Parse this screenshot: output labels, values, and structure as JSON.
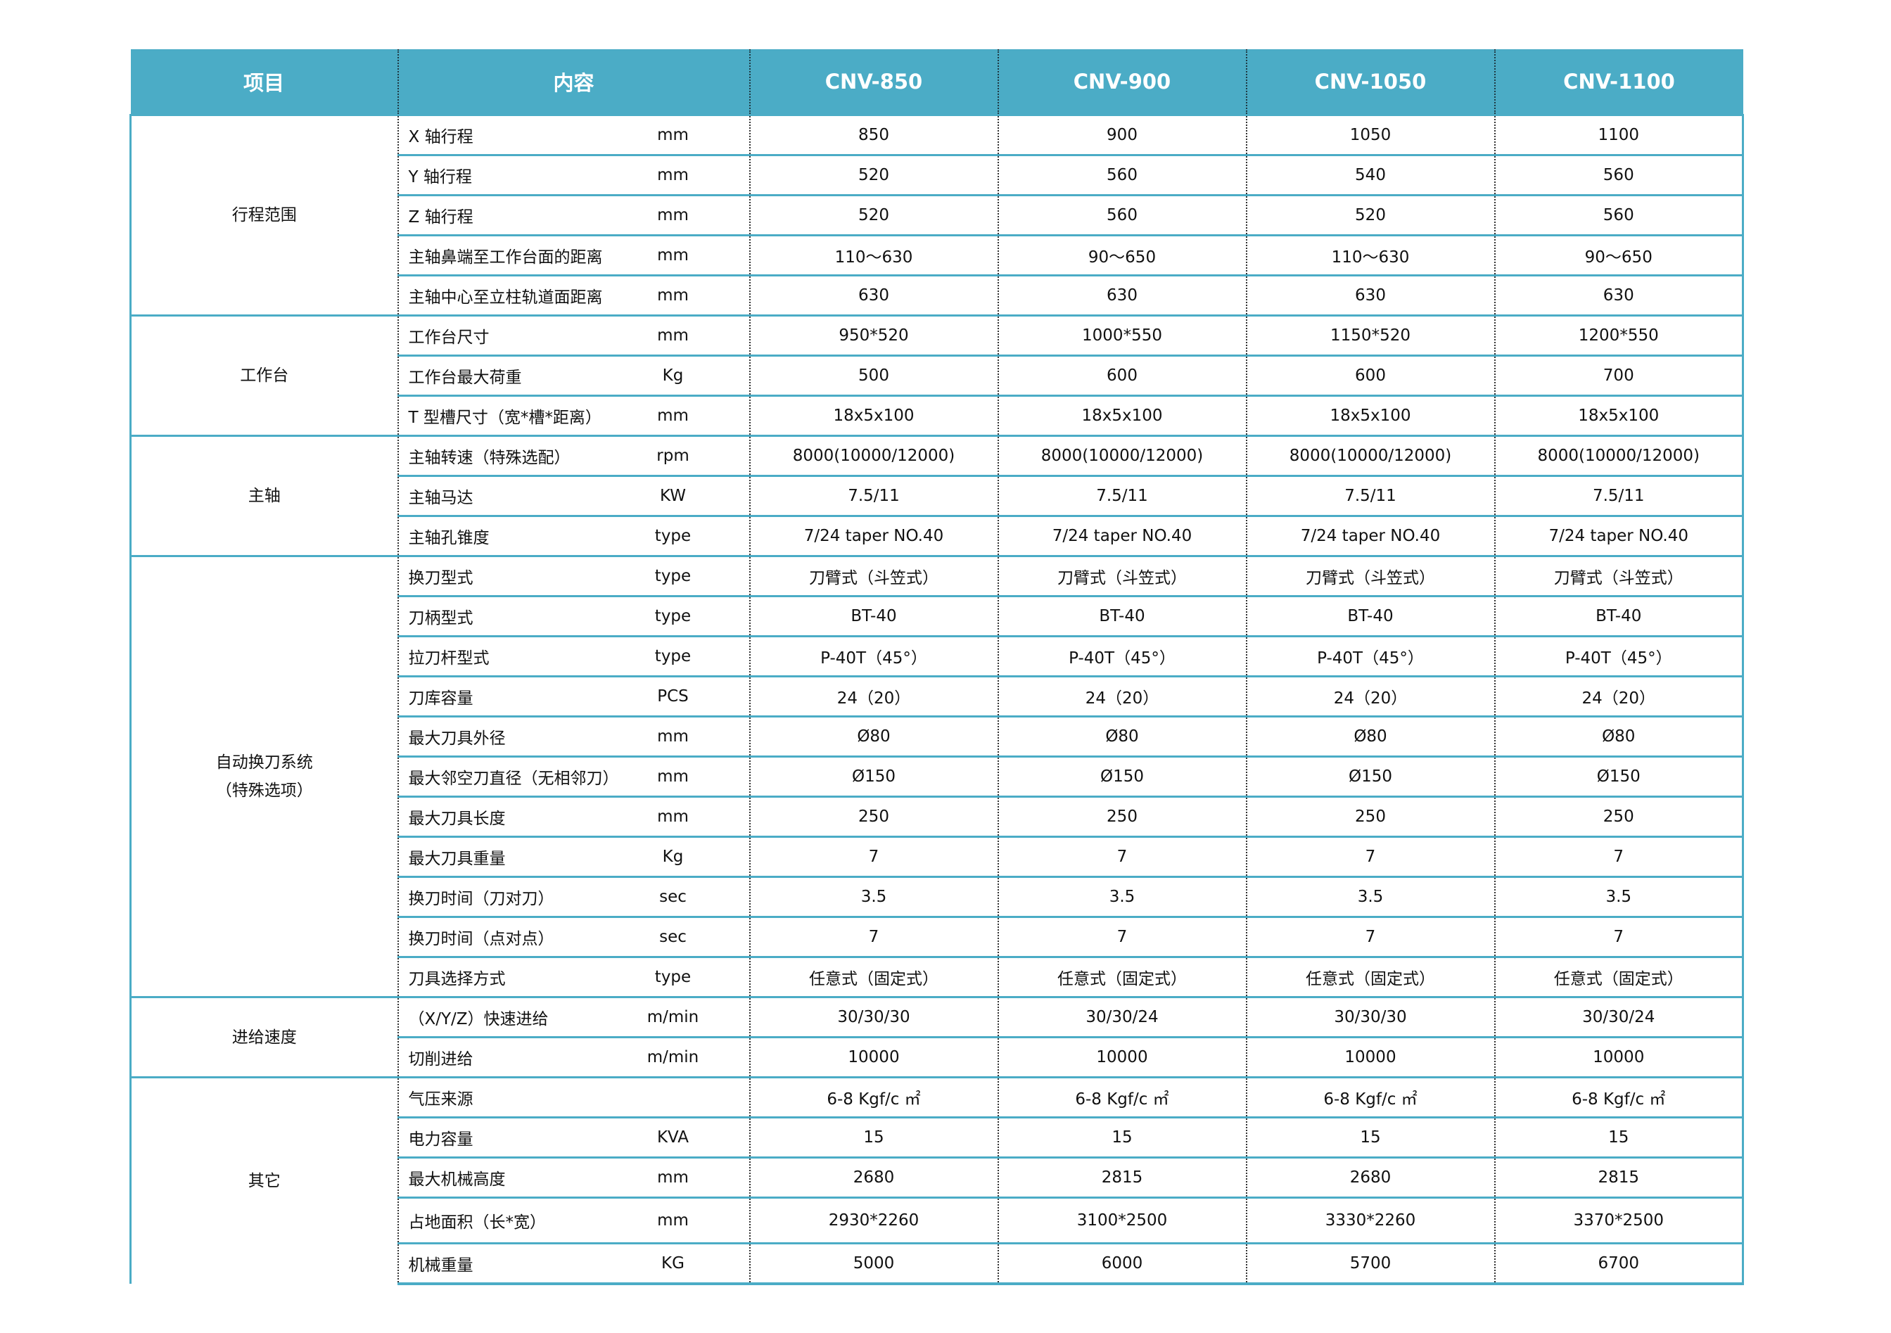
{
  "header": {
    "item": "项目",
    "content": "内容",
    "models": [
      "CNV-850",
      "CNV-900",
      "CNV-1050",
      "CNV-1100"
    ]
  },
  "colors": {
    "header_bg": "#4BACC6",
    "rule": "#4BACC6"
  },
  "groups": [
    {
      "name": "行程范围",
      "rows": [
        {
          "label": "X 轴行程",
          "unit": "mm",
          "values": [
            "850",
            "900",
            "1050",
            "1100"
          ]
        },
        {
          "label": "Y 轴行程",
          "unit": "mm",
          "values": [
            "520",
            "560",
            "540",
            "560"
          ]
        },
        {
          "label": "Z 轴行程",
          "unit": "mm",
          "values": [
            "520",
            "560",
            "520",
            "560"
          ]
        },
        {
          "label": "主轴鼻端至工作台面的距离",
          "unit": "mm",
          "values": [
            "110～630",
            "90～650",
            "110～630",
            "90～650"
          ]
        },
        {
          "label": "主轴中心至立柱轨道面距离",
          "unit": "mm",
          "values": [
            "630",
            "630",
            "630",
            "630"
          ]
        }
      ]
    },
    {
      "name": "工作台",
      "rows": [
        {
          "label": "工作台尺寸",
          "unit": "mm",
          "values": [
            "950*520",
            "1000*550",
            "1150*520",
            "1200*550"
          ]
        },
        {
          "label": "工作台最大荷重",
          "unit": "Kg",
          "values": [
            "500",
            "600",
            "600",
            "700"
          ]
        },
        {
          "label": "T 型槽尺寸（宽*槽*距离）",
          "unit": "mm",
          "values": [
            "18x5x100",
            "18x5x100",
            "18x5x100",
            "18x5x100"
          ]
        }
      ]
    },
    {
      "name": "主轴",
      "rows": [
        {
          "label": "主轴转速（特殊选配）",
          "unit": "rpm",
          "values": [
            "8000(10000/12000)",
            "8000(10000/12000)",
            "8000(10000/12000)",
            "8000(10000/12000)"
          ]
        },
        {
          "label": "主轴马达",
          "unit": "KW",
          "values": [
            "7.5/11",
            "7.5/11",
            "7.5/11",
            "7.5/11"
          ]
        },
        {
          "label": "主轴孔锥度",
          "unit": "type",
          "values": [
            "7/24 taper NO.40",
            "7/24 taper NO.40",
            "7/24 taper NO.40",
            "7/24 taper NO.40"
          ]
        }
      ]
    },
    {
      "name": "自动换刀系统\n（特殊选项）",
      "rows": [
        {
          "label": "换刀型式",
          "unit": "type",
          "values": [
            "刀臂式（斗笠式）",
            "刀臂式（斗笠式）",
            "刀臂式（斗笠式）",
            "刀臂式（斗笠式）"
          ]
        },
        {
          "label": "刀柄型式",
          "unit": "type",
          "values": [
            "BT-40",
            "BT-40",
            "BT-40",
            "BT-40"
          ]
        },
        {
          "label": "拉刀杆型式",
          "unit": "type",
          "values": [
            "P-40T（45°）",
            "P-40T（45°）",
            "P-40T（45°）",
            "P-40T（45°）"
          ]
        },
        {
          "label": "刀库容量",
          "unit": "PCS",
          "values": [
            "24（20）",
            "24（20）",
            "24（20）",
            "24（20）"
          ]
        },
        {
          "label": "最大刀具外径",
          "unit": "mm",
          "values": [
            "Ø80",
            "Ø80",
            "Ø80",
            "Ø80"
          ]
        },
        {
          "label": "最大邻空刀直径（无相邻刀）",
          "unit": "mm",
          "values": [
            "Ø150",
            "Ø150",
            "Ø150",
            "Ø150"
          ]
        },
        {
          "label": "最大刀具长度",
          "unit": "mm",
          "values": [
            "250",
            "250",
            "250",
            "250"
          ]
        },
        {
          "label": "最大刀具重量",
          "unit": "Kg",
          "values": [
            "7",
            "7",
            "7",
            "7"
          ]
        },
        {
          "label": "换刀时间（刀对刀）",
          "unit": "sec",
          "values": [
            "3.5",
            "3.5",
            "3.5",
            "3.5"
          ]
        },
        {
          "label": "换刀时间（点对点）",
          "unit": "sec",
          "values": [
            "7",
            "7",
            "7",
            "7"
          ]
        },
        {
          "label": "刀具选择方式",
          "unit": "type",
          "values": [
            "任意式（固定式）",
            "任意式（固定式）",
            "任意式（固定式）",
            "任意式（固定式）"
          ]
        }
      ]
    },
    {
      "name": "进给速度",
      "rows": [
        {
          "label": "（X/Y/Z）快速进给",
          "unit": "m/min",
          "values": [
            "30/30/30",
            "30/30/24",
            "30/30/30",
            "30/30/24"
          ]
        },
        {
          "label": "切削进给",
          "unit": "m/min",
          "values": [
            "10000",
            "10000",
            "10000",
            "10000"
          ]
        }
      ]
    },
    {
      "name": "其它",
      "rows": [
        {
          "label": "气压来源",
          "unit": "",
          "values": [
            "6-8 Kgf/c ㎡",
            "6-8 Kgf/c ㎡",
            "6-8 Kgf/c ㎡",
            "6-8 Kgf/c ㎡"
          ]
        },
        {
          "label": "电力容量",
          "unit": "KVA",
          "values": [
            "15",
            "15",
            "15",
            "15"
          ]
        },
        {
          "label": "最大机械高度",
          "unit": "mm",
          "values": [
            "2680",
            "2815",
            "2680",
            "2815"
          ]
        },
        {
          "label": "占地面积（长*宽）",
          "unit": "mm",
          "values": [
            "2930*2260",
            "3100*2500",
            "3330*2260",
            "3370*2500"
          ]
        },
        {
          "label": "机械重量",
          "unit": "KG",
          "values": [
            "5000",
            "6000",
            "5700",
            "6700"
          ]
        }
      ]
    }
  ]
}
